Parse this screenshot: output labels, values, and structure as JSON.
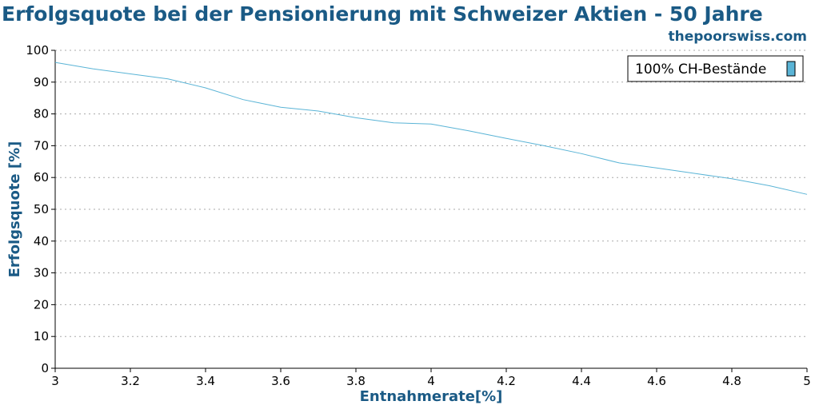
{
  "chart_data": {
    "type": "line",
    "title": "Erfolgsquote bei der Pensionierung mit Schweizer Aktien - 50 Jahre",
    "subtitle": "thepoorswiss.com",
    "xlabel": "Entnahmerate[%]",
    "ylabel": "Erfolgsquote [%]",
    "xlim": [
      3,
      5
    ],
    "ylim": [
      0,
      100
    ],
    "xticks": [
      "3",
      "3.2",
      "3.4",
      "3.6",
      "3.8",
      "4",
      "4.2",
      "4.4",
      "4.6",
      "4.8",
      "5"
    ],
    "yticks": [
      "0",
      "10",
      "20",
      "30",
      "40",
      "50",
      "60",
      "70",
      "80",
      "90",
      "100"
    ],
    "grid": "horizontal dotted",
    "legend_position": "top-right",
    "colors": {
      "series": "#5ab4d6",
      "title": "#1a5a85"
    },
    "series": [
      {
        "name": "100% CH-Bestände",
        "x": [
          3.0,
          3.1,
          3.2,
          3.3,
          3.4,
          3.5,
          3.6,
          3.7,
          3.8,
          3.9,
          4.0,
          4.1,
          4.2,
          4.3,
          4.4,
          4.5,
          4.6,
          4.7,
          4.8,
          4.9,
          5.0
        ],
        "y": [
          96.2,
          94.2,
          92.6,
          91.0,
          88.2,
          84.5,
          82.1,
          80.9,
          78.8,
          77.2,
          76.8,
          74.7,
          72.3,
          70.0,
          67.5,
          64.6,
          63.0,
          61.3,
          59.6,
          57.4,
          54.7
        ]
      }
    ]
  }
}
